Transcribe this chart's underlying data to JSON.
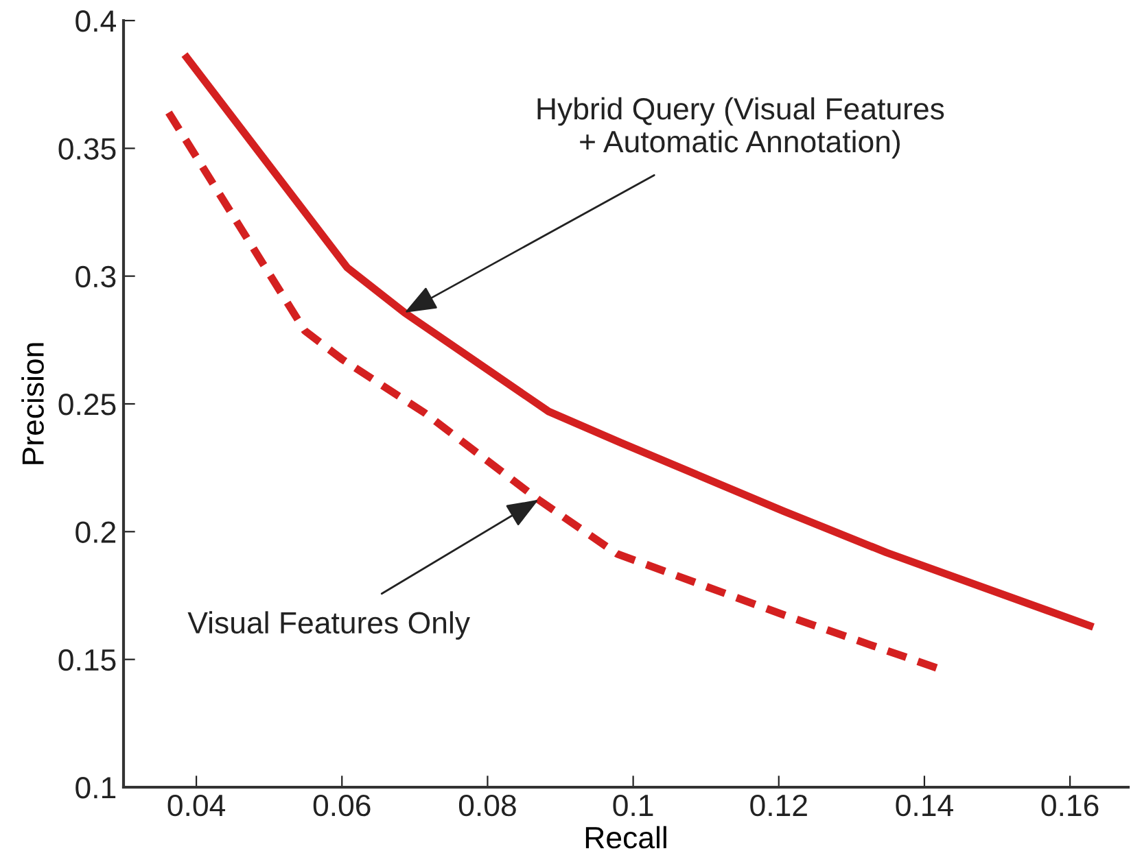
{
  "chart_data": {
    "type": "line",
    "xlabel": "Recall",
    "ylabel": "Precision",
    "xlim": [
      0.03,
      0.168
    ],
    "xticks": [
      0.04,
      0.06,
      0.08,
      0.1,
      0.12,
      0.14,
      0.16
    ],
    "ylim": [
      0.1,
      0.4
    ],
    "yticks": [
      0.1,
      0.15,
      0.2,
      0.25,
      0.3,
      0.35,
      0.4
    ],
    "grid": false,
    "series": [
      {
        "color": "#d42020",
        "line_style": "solid",
        "x": [
          0.0387,
          0.0607,
          0.0686,
          0.0793,
          0.0884,
          0.0983,
          0.1207,
          0.1348,
          0.1627
        ],
        "values": [
          0.3855,
          0.3034,
          0.2857,
          0.2648,
          0.247,
          0.2348,
          0.208,
          0.1918,
          0.1632
        ]
      },
      {
        "color": "#d42020",
        "line_style": "dashed",
        "x": [
          0.0362,
          0.0549,
          0.06,
          0.0714,
          0.087,
          0.0978,
          0.1207,
          0.1429
        ],
        "values": [
          0.364,
          0.2786,
          0.2675,
          0.2464,
          0.2125,
          0.1913,
          0.1674,
          0.1455
        ]
      }
    ],
    "annotations": [
      {
        "text": "Hybrid Query (Visual Features\n+ Automatic Annotation)",
        "x": 0.0686,
        "y": 0.2857
      },
      {
        "text": "Visual Features Only",
        "x": 0.087,
        "y": 0.2125
      }
    ]
  }
}
